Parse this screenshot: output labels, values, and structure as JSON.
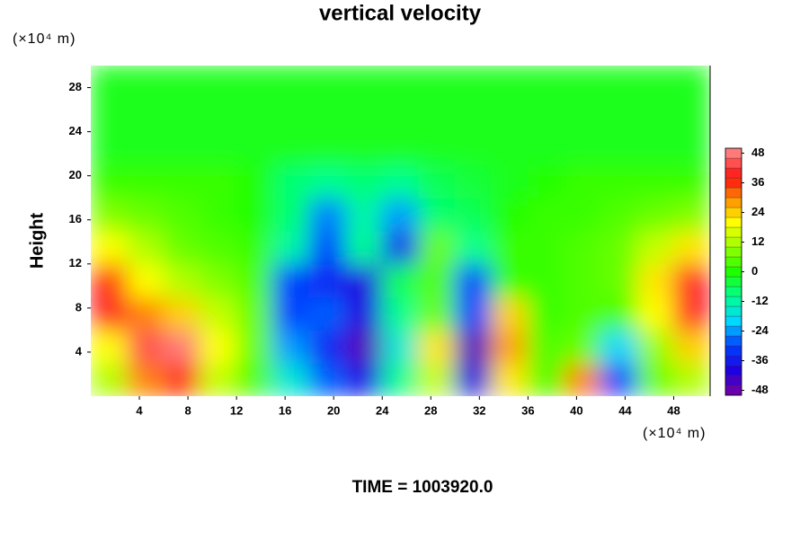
{
  "chart_data": {
    "type": "contour",
    "title": "vertical velocity",
    "ylabel": "Height",
    "x_unit": "(×10⁴ m)",
    "y_unit": "(×10⁴ m)",
    "footer": "TIME = 1003920.0",
    "x": [
      1.5,
      4.5,
      7.5,
      10.5,
      13.5,
      16.5,
      19.5,
      22.5,
      25.5,
      28.5,
      31.5,
      34.5,
      37.5,
      40.5,
      43.5,
      46.5,
      49.5
    ],
    "y": [
      1.5,
      4.5,
      7.5,
      10.5,
      13.5,
      16.5,
      19.5,
      22.5,
      25.5,
      28.5
    ],
    "z": [
      [
        12,
        30,
        36,
        14,
        4,
        -16,
        -28,
        -38,
        -10,
        14,
        -40,
        22,
        4,
        30,
        -30,
        6,
        12
      ],
      [
        20,
        44,
        48,
        20,
        6,
        -24,
        -34,
        -46,
        -16,
        22,
        -46,
        28,
        4,
        6,
        -20,
        10,
        24
      ],
      [
        40,
        30,
        24,
        14,
        6,
        -30,
        -28,
        -40,
        -10,
        6,
        -30,
        24,
        2,
        4,
        4,
        20,
        40
      ],
      [
        36,
        20,
        12,
        8,
        4,
        -30,
        -34,
        -40,
        -6,
        4,
        -30,
        2,
        2,
        4,
        6,
        22,
        40
      ],
      [
        20,
        12,
        6,
        4,
        2,
        -12,
        -30,
        -10,
        -36,
        6,
        -10,
        2,
        2,
        4,
        6,
        14,
        22
      ],
      [
        8,
        6,
        4,
        2,
        0,
        -8,
        -26,
        -12,
        -24,
        -8,
        -6,
        0,
        2,
        2,
        4,
        6,
        8
      ],
      [
        2,
        2,
        2,
        2,
        0,
        -8,
        -10,
        -8,
        -10,
        -6,
        -4,
        -2,
        0,
        2,
        2,
        2,
        2
      ],
      [
        -2,
        -2,
        -2,
        -2,
        -2,
        -2,
        -2,
        -2,
        -2,
        -2,
        -2,
        -2,
        -2,
        -2,
        -2,
        -2,
        -2
      ],
      [
        -2,
        -2,
        -2,
        -2,
        -2,
        -2,
        -2,
        -2,
        -2,
        -2,
        -2,
        -2,
        -2,
        -2,
        -2,
        -2,
        -2
      ],
      [
        -2,
        -2,
        -2,
        -2,
        -2,
        -2,
        -2,
        -2,
        -2,
        -2,
        -2,
        -2,
        -2,
        -2,
        -2,
        -2,
        -2
      ]
    ],
    "xlim": [
      0,
      51
    ],
    "ylim": [
      0,
      30
    ],
    "xticks": [
      4,
      8,
      12,
      16,
      20,
      24,
      28,
      32,
      36,
      40,
      44,
      48
    ],
    "yticks": [
      4,
      8,
      12,
      16,
      20,
      24,
      28
    ],
    "zlim": [
      -50,
      50
    ],
    "zticks": [
      -48,
      -36,
      -24,
      -12,
      0,
      12,
      24,
      36,
      48
    ],
    "contour_step": 4,
    "colormap": [
      {
        "value": -50,
        "color": "#7a00a0"
      },
      {
        "value": -40,
        "color": "#2000e0"
      },
      {
        "value": -30,
        "color": "#0040ff"
      },
      {
        "value": -20,
        "color": "#00d8ff"
      },
      {
        "value": -10,
        "color": "#00ff90"
      },
      {
        "value": 0,
        "color": "#20ff00"
      },
      {
        "value": 12,
        "color": "#b0ff00"
      },
      {
        "value": 20,
        "color": "#ffff00"
      },
      {
        "value": 28,
        "color": "#ffa000"
      },
      {
        "value": 38,
        "color": "#ff1010"
      },
      {
        "value": 50,
        "color": "#ff9090"
      }
    ]
  }
}
